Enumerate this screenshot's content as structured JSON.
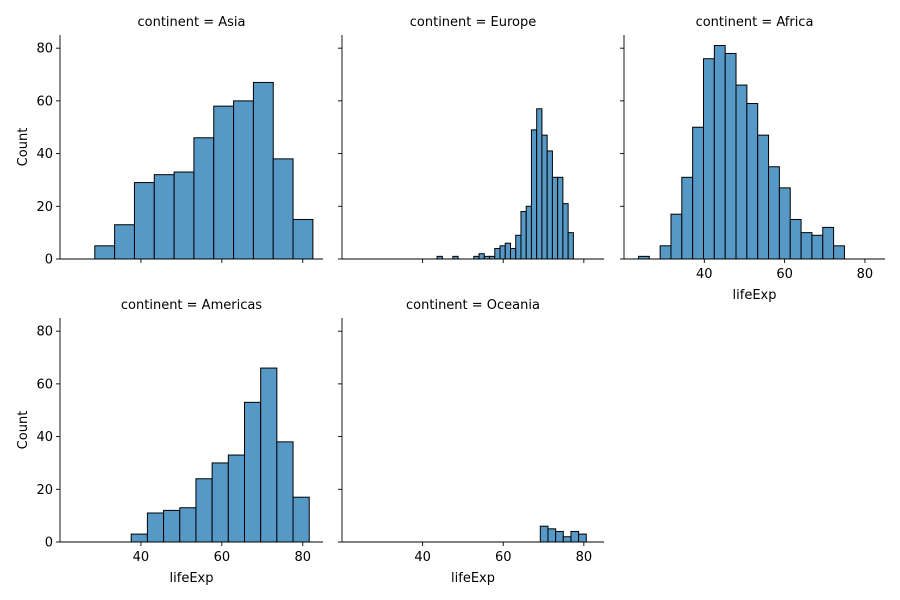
{
  "chart_data": {
    "type": "bar",
    "kind": "histogram-facet-grid",
    "facet_variable": "continent",
    "xlabel": "lifeExp",
    "ylabel": "Count",
    "xlim": [
      20,
      85
    ],
    "ylim": [
      0,
      85
    ],
    "x_ticks": [
      40,
      60,
      80
    ],
    "y_ticks": [
      0,
      20,
      40,
      60,
      80
    ],
    "bar_color": "#5799c6",
    "edge_color": "#000000",
    "panels": [
      {
        "title": "continent = Asia",
        "bin_width": 4.9,
        "bins": [
          {
            "x0": 28.6,
            "x1": 33.5,
            "count": 5
          },
          {
            "x0": 33.5,
            "x1": 38.4,
            "count": 13
          },
          {
            "x0": 38.4,
            "x1": 43.3,
            "count": 29
          },
          {
            "x0": 43.3,
            "x1": 48.2,
            "count": 32
          },
          {
            "x0": 48.2,
            "x1": 53.1,
            "count": 33
          },
          {
            "x0": 53.1,
            "x1": 58.0,
            "count": 46
          },
          {
            "x0": 58.0,
            "x1": 62.9,
            "count": 58
          },
          {
            "x0": 62.9,
            "x1": 67.8,
            "count": 60
          },
          {
            "x0": 67.8,
            "x1": 72.7,
            "count": 67
          },
          {
            "x0": 72.7,
            "x1": 77.6,
            "count": 38
          },
          {
            "x0": 77.6,
            "x1": 82.5,
            "count": 15
          }
        ]
      },
      {
        "title": "continent = Europe",
        "bin_width": 1.3,
        "bins": [
          {
            "x0": 43.6,
            "x1": 44.9,
            "count": 1
          },
          {
            "x0": 44.9,
            "x1": 46.2,
            "count": 0
          },
          {
            "x0": 46.2,
            "x1": 47.5,
            "count": 0
          },
          {
            "x0": 47.5,
            "x1": 48.8,
            "count": 1
          },
          {
            "x0": 48.8,
            "x1": 50.1,
            "count": 0
          },
          {
            "x0": 50.1,
            "x1": 51.4,
            "count": 0
          },
          {
            "x0": 51.4,
            "x1": 52.7,
            "count": 0
          },
          {
            "x0": 52.7,
            "x1": 54.0,
            "count": 1
          },
          {
            "x0": 54.0,
            "x1": 55.3,
            "count": 2
          },
          {
            "x0": 55.3,
            "x1": 56.6,
            "count": 1
          },
          {
            "x0": 56.6,
            "x1": 57.9,
            "count": 1
          },
          {
            "x0": 57.9,
            "x1": 59.2,
            "count": 4
          },
          {
            "x0": 59.2,
            "x1": 60.5,
            "count": 5
          },
          {
            "x0": 60.5,
            "x1": 61.8,
            "count": 6
          },
          {
            "x0": 61.8,
            "x1": 63.1,
            "count": 4
          },
          {
            "x0": 63.1,
            "x1": 64.4,
            "count": 9
          },
          {
            "x0": 64.4,
            "x1": 65.7,
            "count": 18
          },
          {
            "x0": 65.7,
            "x1": 67.0,
            "count": 20
          },
          {
            "x0": 67.0,
            "x1": 68.3,
            "count": 49
          },
          {
            "x0": 68.3,
            "x1": 69.6,
            "count": 57
          },
          {
            "x0": 69.6,
            "x1": 70.9,
            "count": 47
          },
          {
            "x0": 70.9,
            "x1": 72.2,
            "count": 41
          },
          {
            "x0": 72.2,
            "x1": 73.5,
            "count": 31
          },
          {
            "x0": 73.5,
            "x1": 74.8,
            "count": 31
          },
          {
            "x0": 74.8,
            "x1": 76.1,
            "count": 21
          },
          {
            "x0": 76.1,
            "x1": 77.4,
            "count": 10
          }
        ]
      },
      {
        "title": "continent = Africa",
        "bin_width": 2.7,
        "bins": [
          {
            "x0": 23.6,
            "x1": 26.3,
            "count": 1
          },
          {
            "x0": 26.3,
            "x1": 29.0,
            "count": 0
          },
          {
            "x0": 29.0,
            "x1": 31.7,
            "count": 5
          },
          {
            "x0": 31.7,
            "x1": 34.4,
            "count": 17
          },
          {
            "x0": 34.4,
            "x1": 37.1,
            "count": 31
          },
          {
            "x0": 37.1,
            "x1": 39.8,
            "count": 50
          },
          {
            "x0": 39.8,
            "x1": 42.5,
            "count": 76
          },
          {
            "x0": 42.5,
            "x1": 45.2,
            "count": 81
          },
          {
            "x0": 45.2,
            "x1": 47.9,
            "count": 78
          },
          {
            "x0": 47.9,
            "x1": 50.6,
            "count": 66
          },
          {
            "x0": 50.6,
            "x1": 53.3,
            "count": 59
          },
          {
            "x0": 53.3,
            "x1": 56.0,
            "count": 47
          },
          {
            "x0": 56.0,
            "x1": 58.7,
            "count": 35
          },
          {
            "x0": 58.7,
            "x1": 61.4,
            "count": 27
          },
          {
            "x0": 61.4,
            "x1": 64.1,
            "count": 15
          },
          {
            "x0": 64.1,
            "x1": 66.8,
            "count": 10
          },
          {
            "x0": 66.8,
            "x1": 69.5,
            "count": 9
          },
          {
            "x0": 69.5,
            "x1": 72.2,
            "count": 12
          },
          {
            "x0": 72.2,
            "x1": 74.9,
            "count": 5
          }
        ]
      },
      {
        "title": "continent = Americas",
        "bin_width": 4.0,
        "bins": [
          {
            "x0": 37.6,
            "x1": 41.6,
            "count": 3
          },
          {
            "x0": 41.6,
            "x1": 45.6,
            "count": 11
          },
          {
            "x0": 45.6,
            "x1": 49.6,
            "count": 12
          },
          {
            "x0": 49.6,
            "x1": 53.6,
            "count": 13
          },
          {
            "x0": 53.6,
            "x1": 57.6,
            "count": 24
          },
          {
            "x0": 57.6,
            "x1": 61.6,
            "count": 30
          },
          {
            "x0": 61.6,
            "x1": 65.6,
            "count": 33
          },
          {
            "x0": 65.6,
            "x1": 69.6,
            "count": 53
          },
          {
            "x0": 69.6,
            "x1": 73.6,
            "count": 66
          },
          {
            "x0": 73.6,
            "x1": 77.6,
            "count": 38
          },
          {
            "x0": 77.6,
            "x1": 81.6,
            "count": 17
          }
        ]
      },
      {
        "title": "continent = Oceania",
        "bin_width": 1.9,
        "bins": [
          {
            "x0": 69.2,
            "x1": 71.1,
            "count": 6
          },
          {
            "x0": 71.1,
            "x1": 73.0,
            "count": 5
          },
          {
            "x0": 73.0,
            "x1": 74.9,
            "count": 4
          },
          {
            "x0": 74.9,
            "x1": 76.8,
            "count": 2
          },
          {
            "x0": 76.8,
            "x1": 78.7,
            "count": 4
          },
          {
            "x0": 78.7,
            "x1": 80.6,
            "count": 3
          }
        ]
      }
    ]
  }
}
